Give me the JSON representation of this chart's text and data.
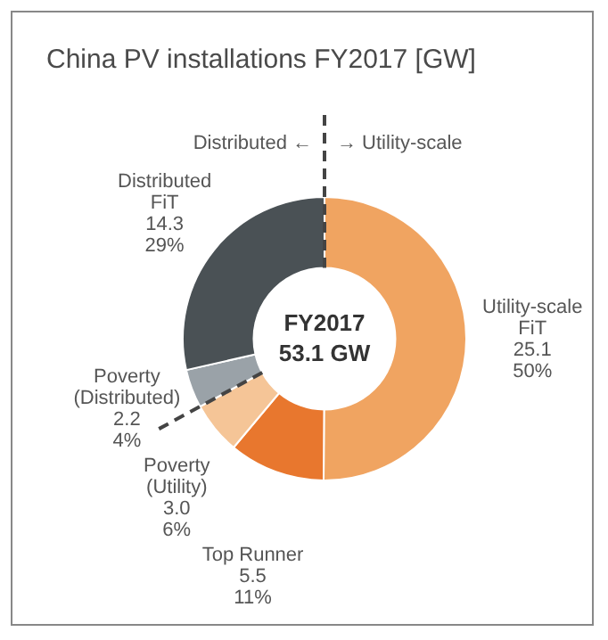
{
  "chart_data": {
    "type": "donut",
    "title": "China PV installations FY2017 [GW]",
    "categories": [
      "Utility-scale FiT",
      "Top Runner",
      "Poverty (Utility)",
      "Poverty (Distributed)",
      "Distributed FiT"
    ],
    "values": [
      25.1,
      5.5,
      3.0,
      2.2,
      14.3
    ],
    "value_labels": [
      "25.1\n50%",
      "5.5\n11%",
      "3.0\n6%",
      "2.2\n4%",
      "14.3\n29%"
    ],
    "colors": [
      "#f0a461",
      "#e8772e",
      "#f5c597",
      "#9aa2a8",
      "#4a5155"
    ],
    "annotations": [
      "FY2017",
      "53.1 GW",
      "Distributed ←",
      "→ Utility-scale"
    ],
    "legend": false
  }
}
